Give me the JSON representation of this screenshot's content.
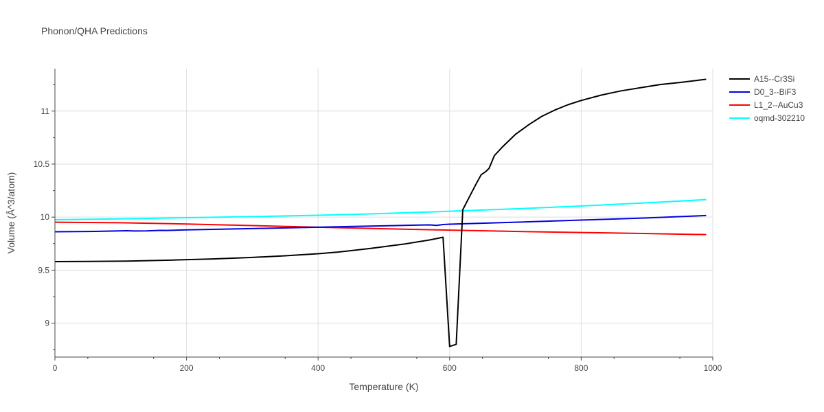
{
  "chart_data": {
    "type": "line",
    "title": "Phonon/QHA Predictions",
    "xlabel": "Temperature (K)",
    "ylabel": "Volume (Å^3/atom)",
    "xlim": [
      0,
      1000
    ],
    "ylim": [
      8.68,
      11.4
    ],
    "xticks": [
      "0",
      "200",
      "400",
      "600",
      "800",
      "1000"
    ],
    "yticks": [
      "9",
      "9.5",
      "10",
      "10.5",
      "11"
    ],
    "grid": true,
    "legend_position": "top-right",
    "series": [
      {
        "name": "A15--Cr3Si",
        "color": "#000000",
        "x": [
          0,
          50,
          110,
          180,
          240,
          300,
          350,
          400,
          430,
          480,
          530,
          570,
          590,
          600,
          610,
          620,
          630,
          640,
          648,
          655,
          660,
          668,
          680,
          700,
          720,
          740,
          760,
          780,
          800,
          830,
          860,
          890,
          920,
          950,
          990
        ],
        "y": [
          9.58,
          9.582,
          9.585,
          9.595,
          9.605,
          9.62,
          9.635,
          9.655,
          9.67,
          9.705,
          9.745,
          9.785,
          9.81,
          8.78,
          8.8,
          10.07,
          10.19,
          10.31,
          10.4,
          10.43,
          10.46,
          10.58,
          10.66,
          10.78,
          10.87,
          10.95,
          11.01,
          11.06,
          11.1,
          11.15,
          11.19,
          11.22,
          11.25,
          11.27,
          11.3
        ]
      },
      {
        "name": "D0_3--BiF3",
        "color": "#0000dd",
        "x": [
          0,
          60,
          110,
          120,
          140,
          160,
          170,
          200,
          300,
          400,
          500,
          560,
          570,
          580,
          590,
          600,
          700,
          800,
          900,
          990
        ],
        "y": [
          9.862,
          9.865,
          9.872,
          9.869,
          9.87,
          9.875,
          9.874,
          9.88,
          9.892,
          9.905,
          9.918,
          9.926,
          9.927,
          9.922,
          9.93,
          9.933,
          9.952,
          9.972,
          9.992,
          10.015
        ]
      },
      {
        "name": "L1_2--AuCu3",
        "color": "#ff0000",
        "x": [
          0,
          100,
          200,
          300,
          400,
          500,
          600,
          700,
          800,
          900,
          990
        ],
        "y": [
          9.952,
          9.947,
          9.935,
          9.92,
          9.905,
          9.89,
          9.877,
          9.865,
          9.855,
          9.845,
          9.835
        ]
      },
      {
        "name": "oqmd-302210",
        "color": "#00ffff",
        "x": [
          0,
          100,
          200,
          300,
          400,
          500,
          600,
          700,
          800,
          900,
          990
        ],
        "y": [
          9.975,
          9.983,
          9.994,
          10.005,
          10.017,
          10.034,
          10.055,
          10.078,
          10.105,
          10.135,
          10.165
        ]
      }
    ]
  }
}
